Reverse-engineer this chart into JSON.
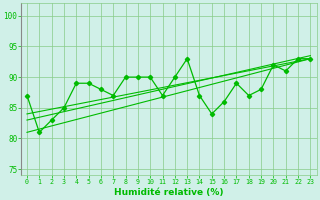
{
  "x": [
    0,
    1,
    2,
    3,
    4,
    5,
    6,
    7,
    8,
    9,
    10,
    11,
    12,
    13,
    14,
    15,
    16,
    17,
    18,
    19,
    20,
    21,
    22,
    23
  ],
  "y_main": [
    87,
    81,
    83,
    85,
    89,
    89,
    88,
    87,
    90,
    90,
    90,
    87,
    90,
    93,
    87,
    84,
    86,
    89,
    87,
    88,
    92,
    91,
    93,
    93
  ],
  "line_color": "#00bb00",
  "bg_color": "#d0f0e8",
  "grid_color": "#88cc88",
  "xlabel": "Humidité relative (%)",
  "ylim": [
    74,
    102
  ],
  "yticks": [
    75,
    80,
    85,
    90,
    95,
    100
  ],
  "xlim": [
    -0.5,
    23.5
  ],
  "trend1": [
    81,
    93
  ],
  "trend2": [
    84,
    93
  ],
  "trend3": [
    83,
    93.5
  ]
}
